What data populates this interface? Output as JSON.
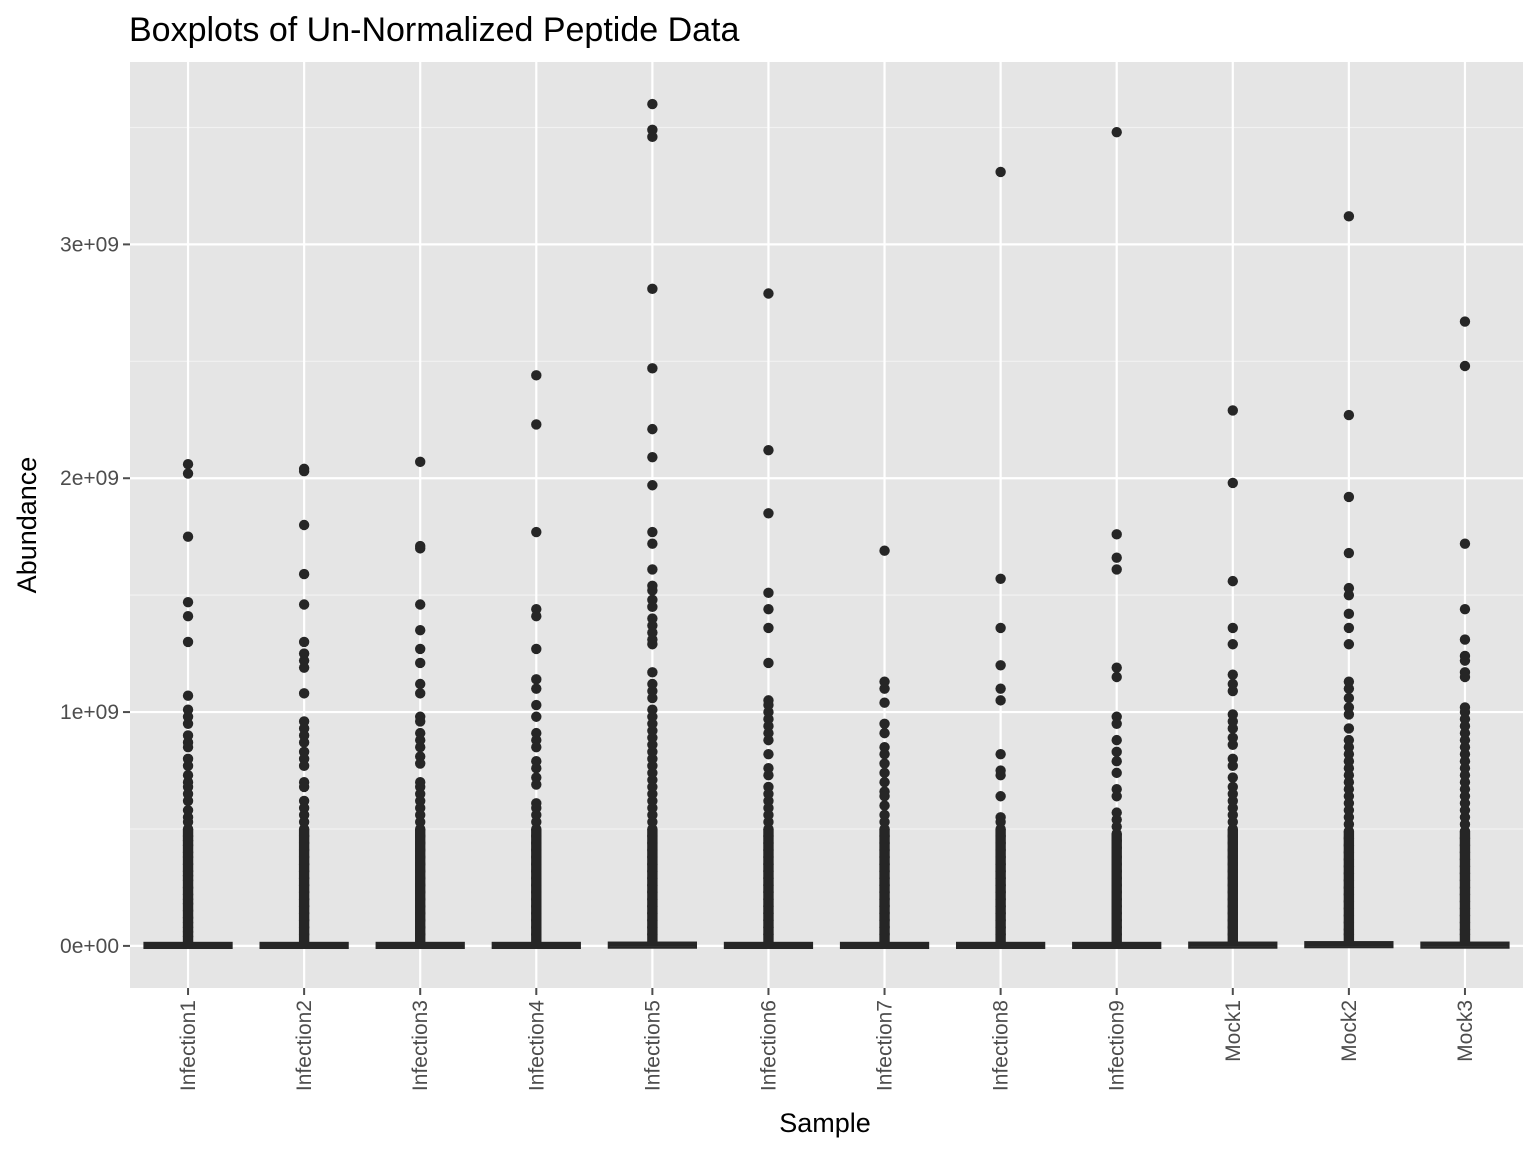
{
  "chart_data": {
    "type": "boxplot",
    "title": "Boxplots of Un-Normalized Peptide Data",
    "xlabel": "Sample",
    "ylabel": "Abundance",
    "ylim": [
      -180000000,
      3780000000
    ],
    "y_ticks": [
      {
        "value": 0,
        "label": "0e+00"
      },
      {
        "value": 1000000000,
        "label": "1e+09"
      },
      {
        "value": 2000000000,
        "label": "2e+09"
      },
      {
        "value": 3000000000,
        "label": "3e+09"
      }
    ],
    "grid": true,
    "colors": {
      "panel": "#e5e5e5",
      "grid": "#ffffff",
      "points": "#262626",
      "ticks": "#4d4d4d"
    },
    "categories": [
      "Infection1",
      "Infection2",
      "Infection3",
      "Infection4",
      "Infection5",
      "Infection6",
      "Infection7",
      "Infection8",
      "Infection9",
      "Mock1",
      "Mock2",
      "Mock3"
    ],
    "boxes": [
      {
        "sample": "Infection1",
        "q1": 1000000,
        "median": 3000000,
        "q3": 8000000,
        "whisker_high": 20000000,
        "outliers": [
          2060000000,
          2020000000,
          1750000000,
          1470000000,
          1410000000,
          1300000000,
          1070000000,
          1010000000,
          980000000,
          950000000,
          900000000,
          870000000,
          850000000,
          800000000,
          770000000,
          730000000,
          700000000,
          680000000,
          650000000,
          620000000,
          580000000,
          550000000,
          530000000,
          500000000,
          470000000,
          450000000,
          430000000,
          400000000,
          380000000,
          350000000,
          320000000,
          300000000,
          280000000,
          250000000,
          220000000,
          200000000,
          180000000,
          150000000,
          120000000,
          100000000,
          80000000,
          60000000,
          40000000
        ]
      },
      {
        "sample": "Infection2",
        "q1": 1000000,
        "median": 3000000,
        "q3": 8000000,
        "whisker_high": 20000000,
        "outliers": [
          2040000000,
          2030000000,
          1800000000,
          1590000000,
          1460000000,
          1300000000,
          1250000000,
          1220000000,
          1190000000,
          1080000000,
          960000000,
          930000000,
          900000000,
          870000000,
          830000000,
          800000000,
          770000000,
          700000000,
          680000000,
          620000000,
          590000000,
          560000000,
          530000000,
          500000000,
          470000000,
          440000000,
          410000000,
          380000000,
          350000000,
          320000000,
          290000000,
          260000000,
          230000000,
          200000000,
          170000000,
          140000000,
          110000000,
          80000000,
          50000000
        ]
      },
      {
        "sample": "Infection3",
        "q1": 1000000,
        "median": 3000000,
        "q3": 8000000,
        "whisker_high": 20000000,
        "outliers": [
          2070000000,
          1710000000,
          1700000000,
          1460000000,
          1350000000,
          1270000000,
          1210000000,
          1120000000,
          1080000000,
          980000000,
          960000000,
          910000000,
          880000000,
          850000000,
          810000000,
          780000000,
          700000000,
          680000000,
          650000000,
          620000000,
          590000000,
          560000000,
          530000000,
          500000000,
          470000000,
          440000000,
          410000000,
          380000000,
          350000000,
          320000000,
          290000000,
          260000000,
          230000000,
          200000000,
          170000000,
          140000000,
          110000000,
          80000000,
          50000000
        ]
      },
      {
        "sample": "Infection4",
        "q1": 1000000,
        "median": 3000000,
        "q3": 8000000,
        "whisker_high": 20000000,
        "outliers": [
          2440000000,
          2230000000,
          1770000000,
          1440000000,
          1410000000,
          1270000000,
          1140000000,
          1100000000,
          1030000000,
          980000000,
          910000000,
          880000000,
          850000000,
          790000000,
          760000000,
          720000000,
          690000000,
          610000000,
          590000000,
          560000000,
          530000000,
          500000000,
          470000000,
          440000000,
          410000000,
          380000000,
          350000000,
          320000000,
          290000000,
          260000000,
          230000000,
          200000000,
          170000000,
          140000000,
          110000000,
          80000000,
          50000000
        ]
      },
      {
        "sample": "Infection5",
        "q1": 2000000,
        "median": 6000000,
        "q3": 14000000,
        "whisker_high": 30000000,
        "outliers": [
          3600000000,
          3490000000,
          3460000000,
          2810000000,
          2470000000,
          2210000000,
          2090000000,
          1970000000,
          1770000000,
          1720000000,
          1610000000,
          1540000000,
          1520000000,
          1480000000,
          1450000000,
          1400000000,
          1370000000,
          1340000000,
          1310000000,
          1290000000,
          1170000000,
          1120000000,
          1090000000,
          1060000000,
          1010000000,
          980000000,
          950000000,
          920000000,
          890000000,
          860000000,
          830000000,
          800000000,
          770000000,
          740000000,
          710000000,
          680000000,
          650000000,
          620000000,
          590000000,
          560000000,
          530000000,
          500000000,
          470000000,
          440000000,
          410000000,
          380000000,
          350000000,
          320000000,
          290000000,
          260000000,
          230000000,
          200000000,
          170000000,
          140000000,
          110000000,
          80000000,
          50000000
        ]
      },
      {
        "sample": "Infection6",
        "q1": 1000000,
        "median": 3000000,
        "q3": 8000000,
        "whisker_high": 20000000,
        "outliers": [
          2790000000,
          2120000000,
          1850000000,
          1510000000,
          1440000000,
          1360000000,
          1210000000,
          1050000000,
          1030000000,
          1000000000,
          970000000,
          940000000,
          910000000,
          880000000,
          820000000,
          760000000,
          730000000,
          680000000,
          650000000,
          620000000,
          590000000,
          560000000,
          530000000,
          500000000,
          470000000,
          440000000,
          410000000,
          380000000,
          350000000,
          320000000,
          290000000,
          260000000,
          230000000,
          200000000,
          170000000,
          140000000,
          110000000,
          80000000,
          50000000
        ]
      },
      {
        "sample": "Infection7",
        "q1": 500000,
        "median": 2000000,
        "q3": 6000000,
        "whisker_high": 15000000,
        "outliers": [
          1690000000,
          1130000000,
          1100000000,
          1040000000,
          950000000,
          910000000,
          850000000,
          820000000,
          780000000,
          740000000,
          700000000,
          660000000,
          640000000,
          600000000,
          560000000,
          530000000,
          500000000,
          470000000,
          440000000,
          410000000,
          380000000,
          350000000,
          320000000,
          290000000,
          260000000,
          230000000,
          200000000,
          170000000,
          140000000,
          110000000,
          80000000,
          50000000
        ]
      },
      {
        "sample": "Infection8",
        "q1": 500000,
        "median": 2000000,
        "q3": 6000000,
        "whisker_high": 15000000,
        "outliers": [
          3310000000,
          1570000000,
          1360000000,
          1200000000,
          1100000000,
          1050000000,
          820000000,
          750000000,
          730000000,
          640000000,
          550000000,
          530000000,
          500000000,
          470000000,
          440000000,
          410000000,
          380000000,
          350000000,
          320000000,
          290000000,
          260000000,
          230000000,
          200000000,
          170000000,
          140000000,
          110000000,
          80000000,
          50000000
        ]
      },
      {
        "sample": "Infection9",
        "q1": 500000,
        "median": 2000000,
        "q3": 6000000,
        "whisker_high": 15000000,
        "outliers": [
          3480000000,
          1760000000,
          1660000000,
          1610000000,
          1190000000,
          1150000000,
          980000000,
          950000000,
          880000000,
          830000000,
          790000000,
          740000000,
          670000000,
          640000000,
          570000000,
          540000000,
          510000000,
          480000000,
          450000000,
          420000000,
          380000000,
          350000000,
          320000000,
          290000000,
          260000000,
          230000000,
          200000000,
          170000000,
          140000000,
          110000000,
          80000000,
          50000000
        ]
      },
      {
        "sample": "Mock1",
        "q1": 2000000,
        "median": 6000000,
        "q3": 14000000,
        "whisker_high": 30000000,
        "outliers": [
          2290000000,
          1980000000,
          1560000000,
          1360000000,
          1290000000,
          1160000000,
          1120000000,
          1090000000,
          990000000,
          960000000,
          930000000,
          890000000,
          860000000,
          800000000,
          770000000,
          720000000,
          680000000,
          650000000,
          620000000,
          590000000,
          560000000,
          530000000,
          500000000,
          470000000,
          440000000,
          410000000,
          380000000,
          350000000,
          320000000,
          290000000,
          260000000,
          230000000,
          200000000,
          170000000,
          140000000,
          110000000,
          80000000,
          50000000
        ]
      },
      {
        "sample": "Mock2",
        "q1": 2000000,
        "median": 7000000,
        "q3": 16000000,
        "whisker_high": 35000000,
        "outliers": [
          3120000000,
          2270000000,
          1920000000,
          1680000000,
          1530000000,
          1500000000,
          1420000000,
          1360000000,
          1290000000,
          1130000000,
          1100000000,
          1060000000,
          1020000000,
          990000000,
          930000000,
          880000000,
          850000000,
          820000000,
          790000000,
          760000000,
          730000000,
          700000000,
          670000000,
          640000000,
          610000000,
          580000000,
          550000000,
          520000000,
          490000000,
          460000000,
          430000000,
          400000000,
          370000000,
          340000000,
          310000000,
          280000000,
          250000000,
          220000000,
          190000000,
          160000000,
          130000000,
          100000000,
          70000000,
          50000000
        ]
      },
      {
        "sample": "Mock3",
        "q1": 2000000,
        "median": 6000000,
        "q3": 14000000,
        "whisker_high": 30000000,
        "outliers": [
          2670000000,
          2480000000,
          1720000000,
          1440000000,
          1310000000,
          1240000000,
          1220000000,
          1170000000,
          1150000000,
          1020000000,
          1000000000,
          970000000,
          940000000,
          910000000,
          880000000,
          850000000,
          820000000,
          790000000,
          760000000,
          730000000,
          700000000,
          670000000,
          640000000,
          610000000,
          580000000,
          550000000,
          520000000,
          490000000,
          460000000,
          430000000,
          400000000,
          370000000,
          340000000,
          310000000,
          280000000,
          250000000,
          220000000,
          190000000,
          160000000,
          130000000,
          100000000,
          70000000,
          50000000
        ]
      }
    ]
  }
}
